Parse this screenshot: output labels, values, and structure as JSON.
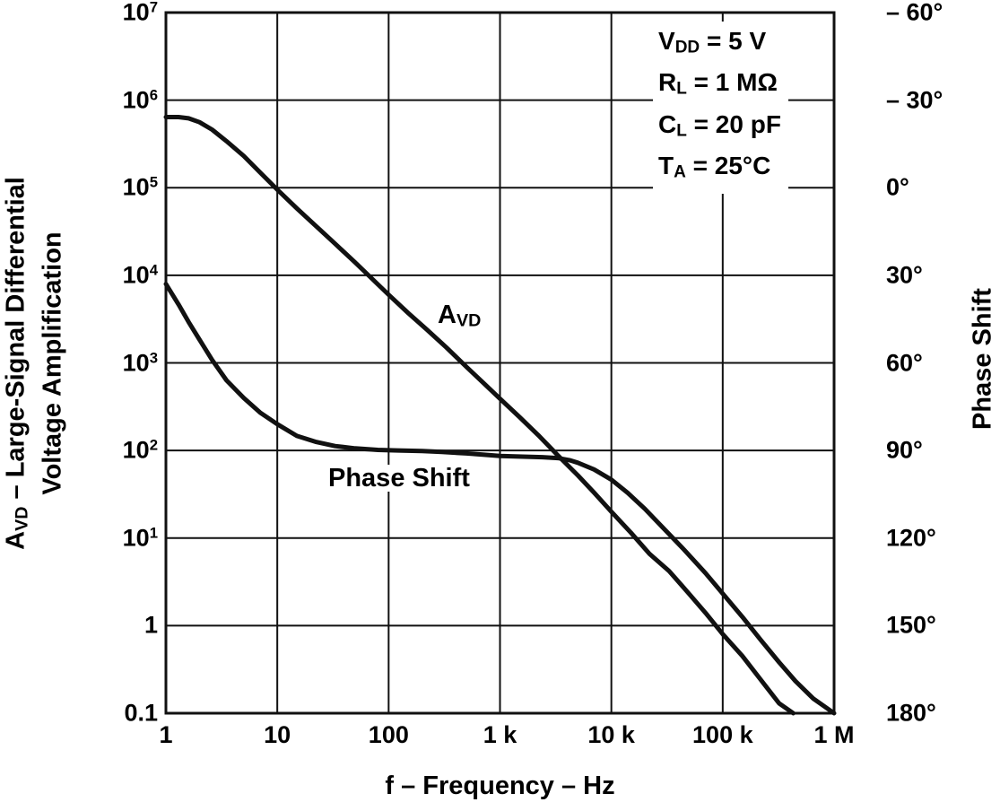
{
  "chart_data": {
    "type": "line",
    "title": "",
    "grid": true,
    "line_color": "#111111",
    "x_axis": {
      "label": "f – Frequency – Hz",
      "scale": "log",
      "min": 1,
      "max": 1000000,
      "tick_values": [
        1,
        10,
        100,
        1000,
        10000,
        100000,
        1000000
      ],
      "tick_labels": [
        "1",
        "10",
        "100",
        "1 k",
        "10 k",
        "100 k",
        "1 M"
      ]
    },
    "y_left_axis": {
      "label": "A_{VD} – Large-Signal Differential\nVoltage Amplification",
      "scale": "log",
      "min": 0.1,
      "max": 10000000,
      "tick_values": [
        10000000,
        1000000,
        100000,
        10000,
        1000,
        100,
        10,
        1,
        0.1
      ],
      "tick_labels": [
        "10^{7}",
        "10^{6}",
        "10^{5}",
        "10^{4}",
        "10^{3}",
        "10^{2}",
        "10^{1}",
        "1",
        "0.1"
      ]
    },
    "y_right_axis": {
      "label": "Phase Shift",
      "scale": "linear",
      "min": -60,
      "max": 180,
      "increases_downward": true,
      "tick_values": [
        -60,
        -30,
        0,
        30,
        60,
        90,
        120,
        150,
        180
      ],
      "tick_labels": [
        "– 60°",
        "– 30°",
        "0°",
        "30°",
        "60°",
        "90°",
        "120°",
        "150°",
        "180°"
      ]
    },
    "annotations": [
      "V_{DD} = 5 V",
      "R_{L} = 1 MΩ",
      "C_{L} = 20 pF",
      "T_{A} = 25°C"
    ],
    "series": [
      {
        "name": "A_{VD}",
        "axis": "left",
        "points": [
          [
            1,
            640000
          ],
          [
            1.3,
            640000
          ],
          [
            1.6,
            620000
          ],
          [
            2,
            560000
          ],
          [
            2.6,
            460000
          ],
          [
            3.5,
            340000
          ],
          [
            5,
            230000
          ],
          [
            7,
            150000
          ],
          [
            10,
            95000
          ],
          [
            15,
            58000
          ],
          [
            22,
            37000
          ],
          [
            33,
            23000
          ],
          [
            50,
            14000
          ],
          [
            70,
            9300
          ],
          [
            100,
            6000
          ],
          [
            150,
            3700
          ],
          [
            220,
            2400
          ],
          [
            330,
            1500
          ],
          [
            500,
            900
          ],
          [
            700,
            600
          ],
          [
            1000,
            390
          ],
          [
            1500,
            240
          ],
          [
            2200,
            150
          ],
          [
            3300,
            88
          ],
          [
            5000,
            52
          ],
          [
            7000,
            33
          ],
          [
            10000,
            20
          ],
          [
            15000,
            11.5
          ],
          [
            22000,
            6.6
          ],
          [
            33000,
            4.2
          ],
          [
            50000,
            2.3
          ],
          [
            70000,
            1.4
          ],
          [
            100000,
            0.8
          ],
          [
            150000,
            0.45
          ],
          [
            220000,
            0.24
          ],
          [
            320000,
            0.13
          ],
          [
            430000,
            0.1
          ]
        ]
      },
      {
        "name": "Phase Shift",
        "axis": "right",
        "points": [
          [
            1,
            33
          ],
          [
            1.3,
            40
          ],
          [
            1.6,
            46
          ],
          [
            2,
            52
          ],
          [
            2.6,
            59
          ],
          [
            3.5,
            66
          ],
          [
            5,
            72
          ],
          [
            7,
            77
          ],
          [
            10,
            81
          ],
          [
            15,
            85
          ],
          [
            22,
            87
          ],
          [
            33,
            88.5
          ],
          [
            50,
            89.3
          ],
          [
            80,
            89.8
          ],
          [
            120,
            90
          ],
          [
            200,
            90.2
          ],
          [
            300,
            90.5
          ],
          [
            500,
            91
          ],
          [
            700,
            91.4
          ],
          [
            1000,
            91.9
          ],
          [
            1600,
            92.1
          ],
          [
            2400,
            92.3
          ],
          [
            3300,
            92.6
          ],
          [
            4200,
            93.3
          ],
          [
            5000,
            94.2
          ],
          [
            7000,
            96.5
          ],
          [
            10000,
            100
          ],
          [
            14000,
            104.5
          ],
          [
            20000,
            110
          ],
          [
            30000,
            117
          ],
          [
            45000,
            124
          ],
          [
            70000,
            132
          ],
          [
            100000,
            139
          ],
          [
            150000,
            147
          ],
          [
            220000,
            155
          ],
          [
            320000,
            162.5
          ],
          [
            450000,
            169
          ],
          [
            650000,
            175
          ],
          [
            1000000,
            180
          ]
        ]
      }
    ]
  },
  "labels": {
    "avd_curve": "A_{VD}",
    "phase_curve": "Phase Shift"
  }
}
